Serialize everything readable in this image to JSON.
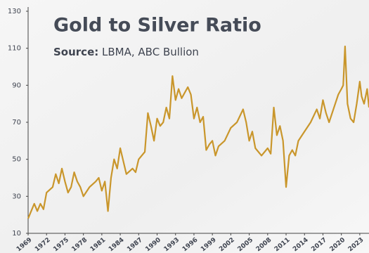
{
  "chart_data": {
    "type": "line",
    "title": "Gold to Silver Ratio",
    "source_label": "Source:",
    "source": "LBMA, ABC Bullion",
    "xlim": [
      1969,
      2024.5
    ],
    "xticks": [
      1969,
      1972,
      1975,
      1978,
      1981,
      1984,
      1987,
      1990,
      1993,
      1996,
      1999,
      2002,
      2005,
      2008,
      2011,
      2014,
      2017,
      2020,
      2023
    ],
    "ylim": [
      10,
      130
    ],
    "yticks": [
      10,
      30,
      50,
      70,
      90,
      110,
      130
    ],
    "grid": false,
    "series": [
      {
        "name": "Gold to Silver Ratio",
        "color": "#c9962b",
        "x": [
          1969,
          1970,
          1970.5,
          1971,
          1971.5,
          1972,
          1973,
          1973.5,
          1974,
          1974.5,
          1975,
          1975.5,
          1976,
          1976.5,
          1977,
          1977.5,
          1978,
          1979,
          1980,
          1980.5,
          1981,
          1981.5,
          1982,
          1982.5,
          1983,
          1983.5,
          1984,
          1985,
          1986,
          1986.5,
          1987,
          1988,
          1988.5,
          1989,
          1989.5,
          1990,
          1990.5,
          1991,
          1991.5,
          1992,
          1992.5,
          1993,
          1993.5,
          1994,
          1995,
          1995.5,
          1996,
          1996.5,
          1997,
          1997.5,
          1998,
          1998.5,
          1999,
          1999.5,
          2000,
          2001,
          2002,
          2003,
          2004,
          2004.5,
          2005,
          2005.5,
          2006,
          2007,
          2008,
          2008.5,
          2009,
          2009.5,
          2010,
          2010.5,
          2011,
          2011.5,
          2012,
          2012.5,
          2013,
          2014,
          2015,
          2016,
          2016.5,
          2017,
          2017.5,
          2018,
          2019,
          2019.5,
          2020,
          2020.3,
          2020.6,
          2021,
          2021.5,
          2022,
          2022.5,
          2023,
          2023.3,
          2023.7,
          2024.2,
          2024.5
        ],
        "values": [
          18,
          26,
          22,
          26,
          23,
          32,
          35,
          42,
          37,
          45,
          38,
          32,
          35,
          43,
          38,
          35,
          30,
          35,
          38,
          40,
          33,
          38,
          22,
          40,
          50,
          45,
          56,
          42,
          45,
          43,
          50,
          54,
          75,
          68,
          60,
          72,
          68,
          70,
          78,
          72,
          95,
          82,
          88,
          83,
          89,
          85,
          72,
          78,
          70,
          73,
          55,
          58,
          60,
          52,
          57,
          60,
          67,
          70,
          77,
          70,
          60,
          65,
          56,
          52,
          56,
          53,
          78,
          63,
          68,
          60,
          35,
          52,
          55,
          52,
          60,
          65,
          70,
          77,
          72,
          82,
          75,
          70,
          80,
          85,
          88,
          90,
          111,
          80,
          72,
          70,
          80,
          92,
          84,
          80,
          88,
          78
        ]
      }
    ]
  }
}
